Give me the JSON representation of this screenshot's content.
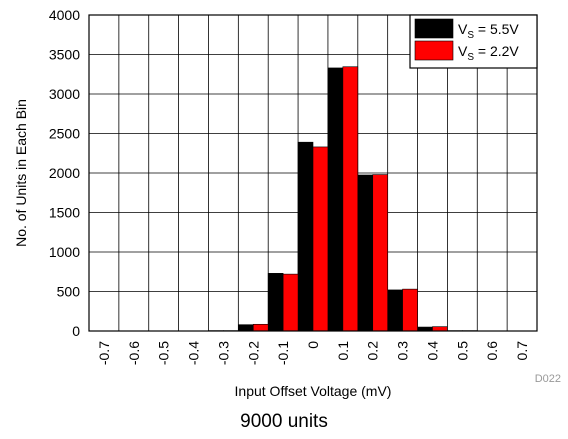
{
  "chart_data": {
    "type": "bar",
    "xlabel": "Input Offset Voltage (mV)",
    "ylabel": "No. of Units in Each Bin",
    "ylim": [
      0,
      4000
    ],
    "yticks": [
      "0",
      "500",
      "1000",
      "1500",
      "2000",
      "2500",
      "3000",
      "3500",
      "4000"
    ],
    "categories": [
      "-0.7",
      "-0.6",
      "-0.5",
      "-0.4",
      "-0.3",
      "-0.2",
      "-0.1",
      "0",
      "0.1",
      "0.2",
      "0.3",
      "0.4",
      "0.5",
      "0.6",
      "0.7"
    ],
    "series": [
      {
        "name_main": "V",
        "name_sub": "S",
        "name_rest": " = 5.5V",
        "color": "#000000",
        "values": [
          0,
          0,
          0,
          0,
          5,
          80,
          730,
          2390,
          3330,
          1975,
          520,
          50,
          5,
          0,
          0
        ]
      },
      {
        "name_main": "V",
        "name_sub": "S",
        "name_rest": " = 2.2V",
        "color": "#ff0000",
        "values": [
          0,
          0,
          0,
          0,
          5,
          85,
          720,
          2330,
          3345,
          1980,
          530,
          55,
          5,
          0,
          0
        ]
      }
    ],
    "grid": true,
    "legend_position": "top-right",
    "figure_id": "D022"
  },
  "caption": "9000 units"
}
